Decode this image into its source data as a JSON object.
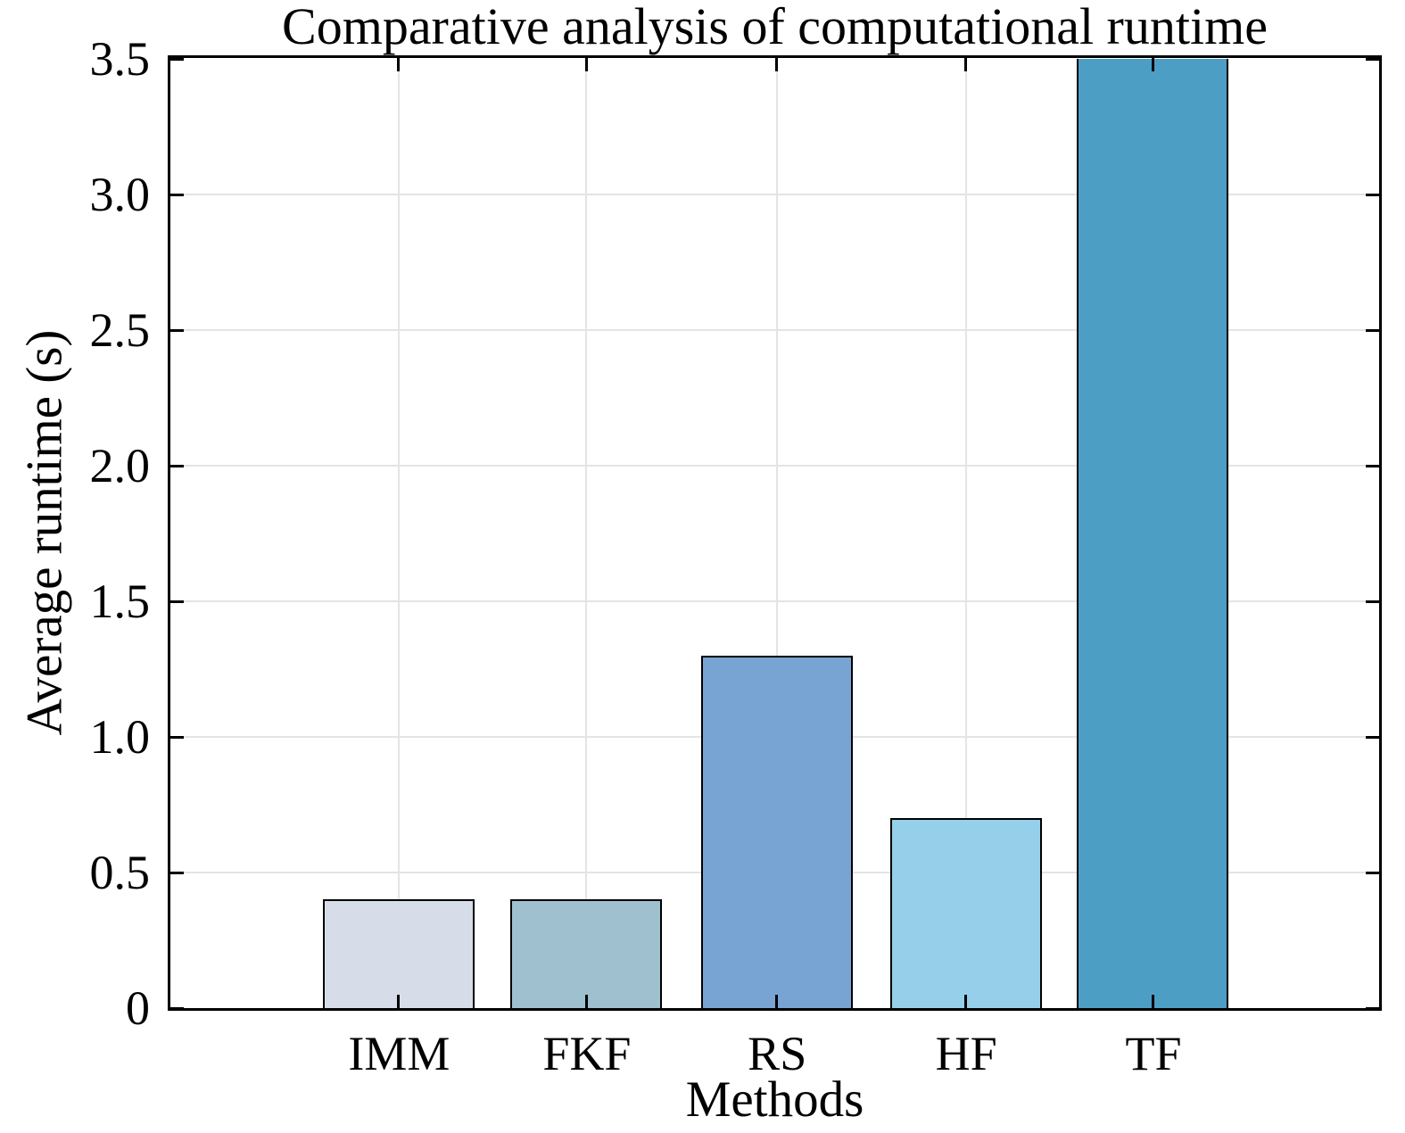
{
  "chart_data": {
    "type": "bar",
    "title": "Comparative analysis of computational runtime",
    "xlabel": "Methods",
    "ylabel": "Average runtime (s)",
    "categories": [
      "IMM",
      "FKF",
      "RS",
      "HF",
      "TF"
    ],
    "values": [
      0.4,
      0.4,
      1.3,
      0.7,
      3.5
    ],
    "clipped": [
      false,
      false,
      false,
      false,
      true
    ],
    "clipped_note": "TF bar is cut off at the top of the axis; its value is >= 3.5",
    "ylim": [
      0,
      3.5
    ],
    "ytick_values": [
      0,
      0.5,
      1,
      1.5,
      2,
      2.5,
      3,
      3.5
    ],
    "ytick_labels": [
      "0",
      "0.5",
      "1.0",
      "1.5",
      "2.0",
      "2.5",
      "3.0",
      "3.5"
    ],
    "grid": true,
    "legend": null,
    "colors": {
      "bars": [
        "#d7dde8",
        "#9fc0ce",
        "#77a4d2",
        "#95cfea",
        "#4c9ec5"
      ],
      "bar_edge": "#000000",
      "grid": "#e4e4e4",
      "spine": "#000000",
      "text": "#000000",
      "background": "#ffffff"
    }
  }
}
